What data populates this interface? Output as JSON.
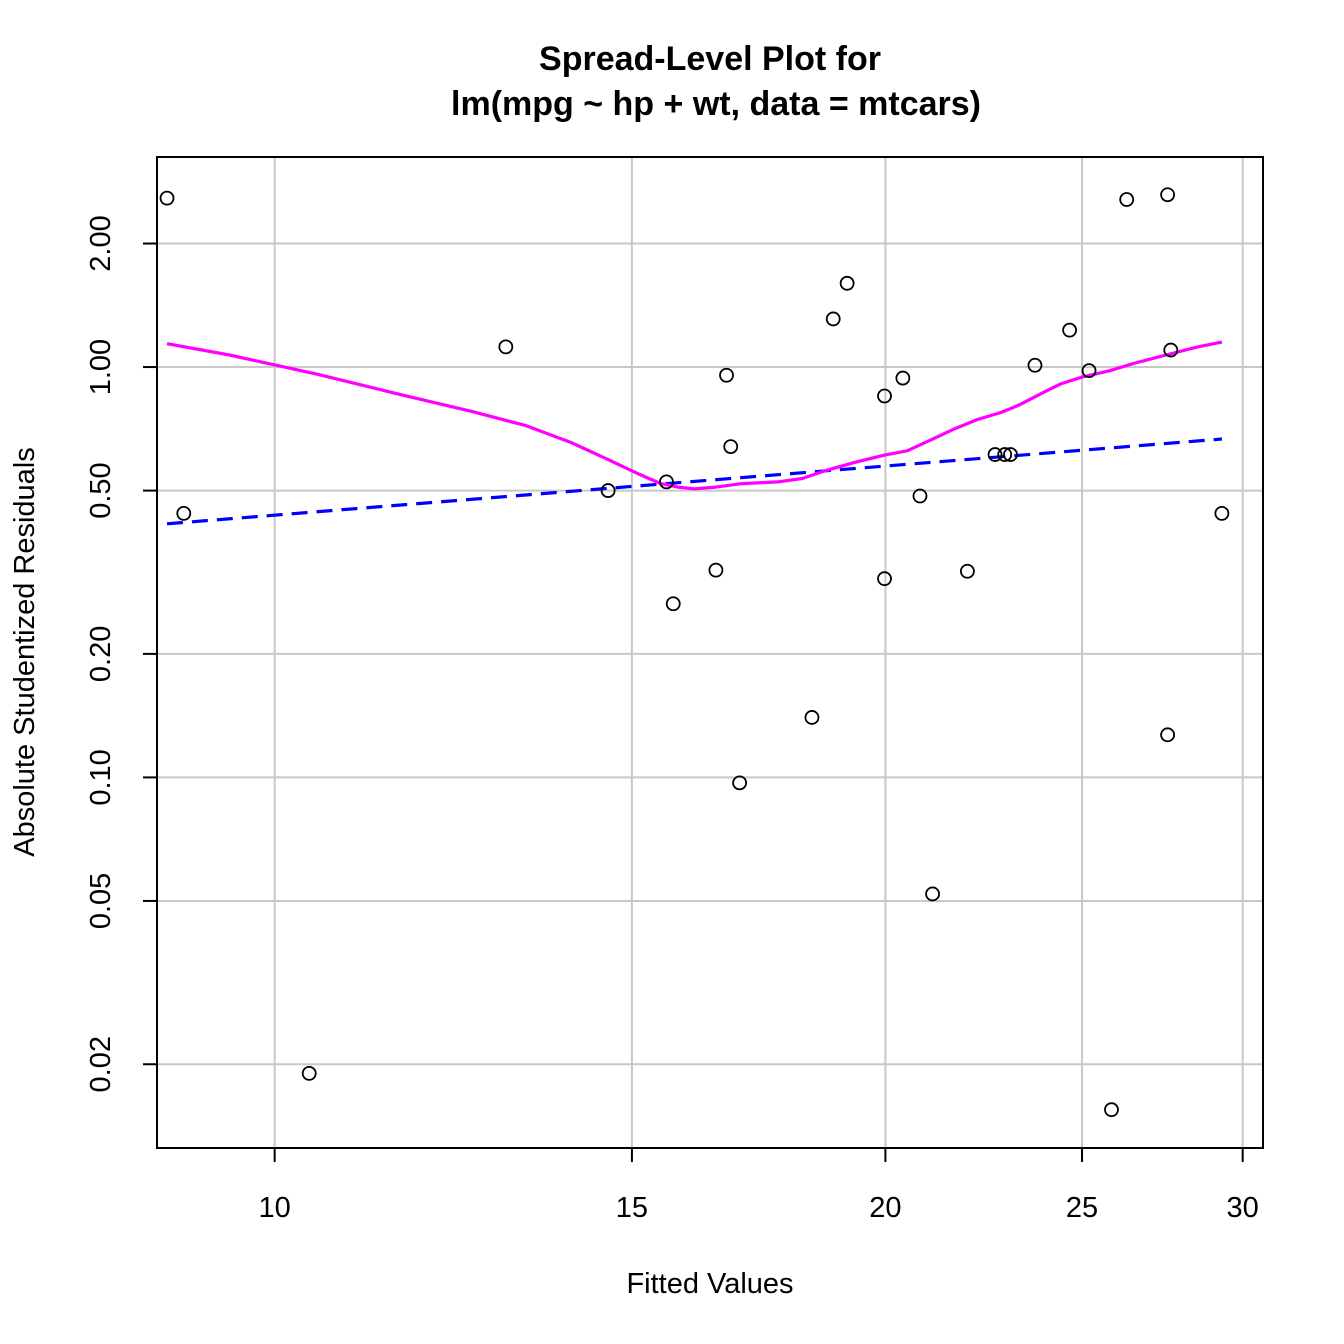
{
  "chart_data": {
    "type": "scatter",
    "title": "Spread-Level Plot for",
    "subtitle": "lm(mpg ~ hp + wt, data = mtcars)",
    "xlabel": "Fitted Values",
    "ylabel": "Absolute Studentized Residuals",
    "x_scale": "log",
    "y_scale": "log",
    "xlim": [
      8.75,
      30.7
    ],
    "ylim": [
      0.0125,
      3.25
    ],
    "grid": true,
    "x_ticks": [
      {
        "value": 10,
        "label": "10"
      },
      {
        "value": 15,
        "label": "15"
      },
      {
        "value": 20,
        "label": "20"
      },
      {
        "value": 25,
        "label": "25"
      },
      {
        "value": 30,
        "label": "30"
      }
    ],
    "y_ticks": [
      {
        "value": 0.02,
        "label": "0.02"
      },
      {
        "value": 0.05,
        "label": "0.05"
      },
      {
        "value": 0.1,
        "label": "0.10"
      },
      {
        "value": 0.2,
        "label": "0.20"
      },
      {
        "value": 0.5,
        "label": "0.50"
      },
      {
        "value": 1.0,
        "label": "1.00"
      },
      {
        "value": 2.0,
        "label": "2.00"
      }
    ],
    "points": [
      {
        "x": 8.85,
        "y": 2.58
      },
      {
        "x": 9.02,
        "y": 0.44
      },
      {
        "x": 10.4,
        "y": 0.019
      },
      {
        "x": 13.0,
        "y": 1.12
      },
      {
        "x": 14.6,
        "y": 0.5
      },
      {
        "x": 15.6,
        "y": 0.525
      },
      {
        "x": 15.72,
        "y": 0.265
      },
      {
        "x": 16.5,
        "y": 0.32
      },
      {
        "x": 16.7,
        "y": 0.955
      },
      {
        "x": 16.78,
        "y": 0.64
      },
      {
        "x": 16.95,
        "y": 0.097
      },
      {
        "x": 18.4,
        "y": 0.14
      },
      {
        "x": 18.85,
        "y": 1.31
      },
      {
        "x": 19.15,
        "y": 1.6
      },
      {
        "x": 19.98,
        "y": 0.85
      },
      {
        "x": 19.98,
        "y": 0.305
      },
      {
        "x": 20.4,
        "y": 0.94
      },
      {
        "x": 20.8,
        "y": 0.485
      },
      {
        "x": 21.1,
        "y": 0.052
      },
      {
        "x": 21.95,
        "y": 0.318
      },
      {
        "x": 22.65,
        "y": 0.612
      },
      {
        "x": 22.9,
        "y": 0.612
      },
      {
        "x": 23.05,
        "y": 0.612
      },
      {
        "x": 23.7,
        "y": 1.01
      },
      {
        "x": 24.65,
        "y": 1.23
      },
      {
        "x": 25.2,
        "y": 0.98
      },
      {
        "x": 25.85,
        "y": 0.0155
      },
      {
        "x": 26.3,
        "y": 2.56
      },
      {
        "x": 27.55,
        "y": 0.127
      },
      {
        "x": 27.65,
        "y": 1.1
      },
      {
        "x": 27.55,
        "y": 2.63
      },
      {
        "x": 29.3,
        "y": 0.44
      }
    ],
    "series": [
      {
        "style": "dashed",
        "color": "#0000ff",
        "x": [
          8.85,
          29.3
        ],
        "y": [
          0.415,
          0.668
        ]
      },
      {
        "style": "solid",
        "color": "#ff00ff",
        "x": [
          8.85,
          9.5,
          10.5,
          11.5,
          12.5,
          13.3,
          14.0,
          14.6,
          15.1,
          15.5,
          15.8,
          16.1,
          16.5,
          17.0,
          17.7,
          18.2,
          18.7,
          19.3,
          19.98,
          20.5,
          21.0,
          21.6,
          22.2,
          22.8,
          23.3,
          23.9,
          24.4,
          25.0,
          25.8,
          26.5,
          27.5,
          28.5,
          29.3
        ],
        "y": [
          1.14,
          1.07,
          0.96,
          0.86,
          0.78,
          0.72,
          0.655,
          0.595,
          0.55,
          0.52,
          0.51,
          0.505,
          0.51,
          0.52,
          0.525,
          0.535,
          0.56,
          0.585,
          0.61,
          0.625,
          0.66,
          0.705,
          0.745,
          0.775,
          0.81,
          0.865,
          0.91,
          0.945,
          0.98,
          1.02,
          1.07,
          1.12,
          1.15
        ]
      }
    ]
  }
}
